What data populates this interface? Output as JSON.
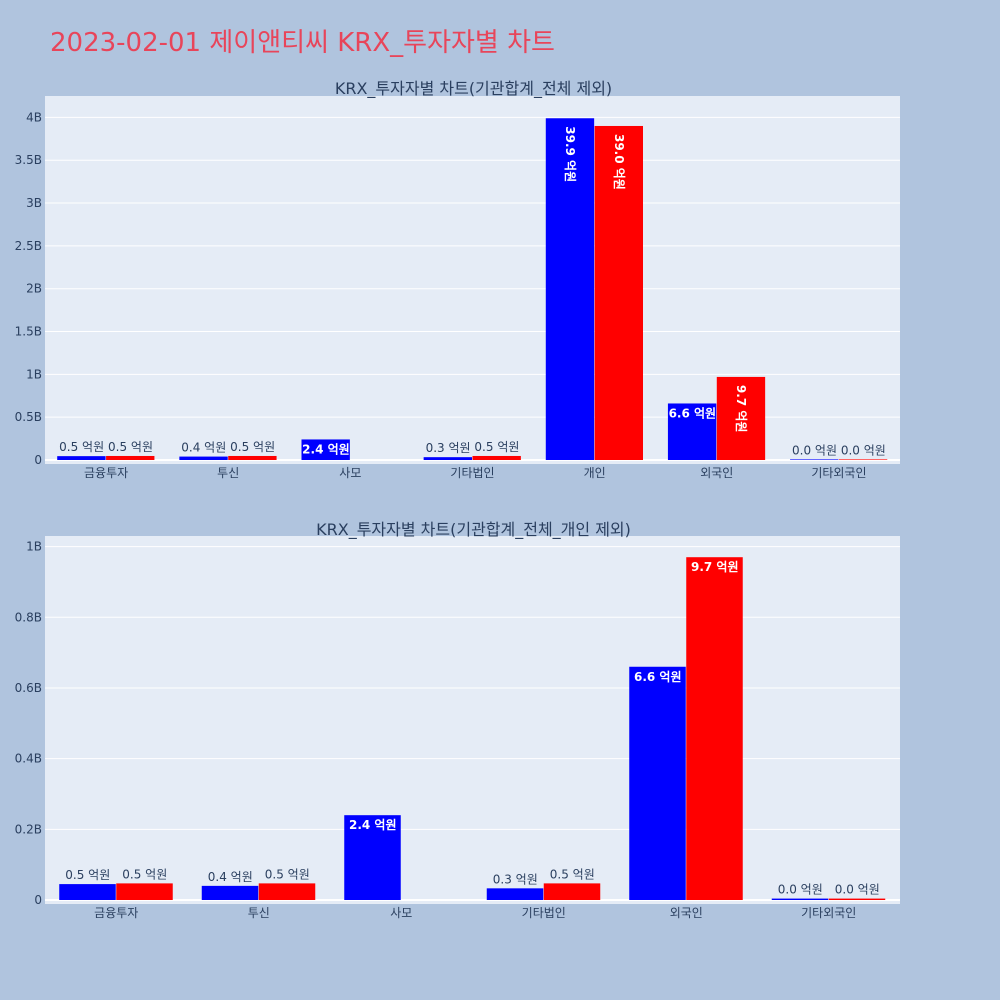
{
  "title": "2023-02-01 제이앤티씨 KRX_투자자별 차트",
  "colors": {
    "buy": "#0000ff",
    "sell": "#ff0000"
  },
  "chart_data": [
    {
      "type": "bar",
      "title": "KRX_투자자별 차트(기관합계_전체 제외)",
      "categories": [
        "금융투자",
        "투신",
        "사모",
        "기타법인",
        "개인",
        "외국인",
        "기타외국인"
      ],
      "ylim": [
        0,
        4250000000
      ],
      "yticks": [
        0,
        500000000,
        1000000000,
        1500000000,
        2000000000,
        2500000000,
        3000000000,
        3500000000,
        4000000000
      ],
      "ytick_labels": [
        "0",
        "0.5B",
        "1B",
        "1.5B",
        "2B",
        "2.5B",
        "3B",
        "3.5B",
        "4B"
      ],
      "grid": true,
      "series": [
        {
          "values": [
            45000000,
            40000000,
            240000000,
            33000000,
            3990000000,
            660000000,
            4000000
          ],
          "labels": [
            "0.5 억원",
            "0.4 억원",
            "2.4 억원",
            "0.3 억원",
            "39.9 억원",
            "6.6 억원",
            "0.0 억원"
          ]
        },
        {
          "values": [
            47000000,
            47000000,
            null,
            47000000,
            3900000000,
            970000000,
            4000000
          ],
          "labels": [
            "0.5 억원",
            "0.5 억원",
            "",
            "0.5 억원",
            "39.0 억원",
            "9.7 억원",
            "0.0 억원"
          ]
        }
      ]
    },
    {
      "type": "bar",
      "title": "KRX_투자자별 차트(기관합계_전체_개인 제외)",
      "categories": [
        "금융투자",
        "투신",
        "사모",
        "기타법인",
        "외국인",
        "기타외국인"
      ],
      "ylim": [
        0,
        1030000000
      ],
      "yticks": [
        0,
        200000000,
        400000000,
        600000000,
        800000000,
        1000000000
      ],
      "ytick_labels": [
        "0",
        "0.2B",
        "0.4B",
        "0.6B",
        "0.8B",
        "1B"
      ],
      "grid": true,
      "series": [
        {
          "values": [
            45000000,
            40000000,
            240000000,
            33000000,
            660000000,
            4000000
          ],
          "labels": [
            "0.5 억원",
            "0.4 억원",
            "2.4 억원",
            "0.3 억원",
            "6.6 억원",
            "0.0 억원"
          ]
        },
        {
          "values": [
            47000000,
            47000000,
            null,
            47000000,
            970000000,
            4000000
          ],
          "labels": [
            "0.5 억원",
            "0.5 억원",
            "",
            "0.5 억원",
            "9.7 억원",
            "0.0 억원"
          ]
        }
      ]
    }
  ]
}
